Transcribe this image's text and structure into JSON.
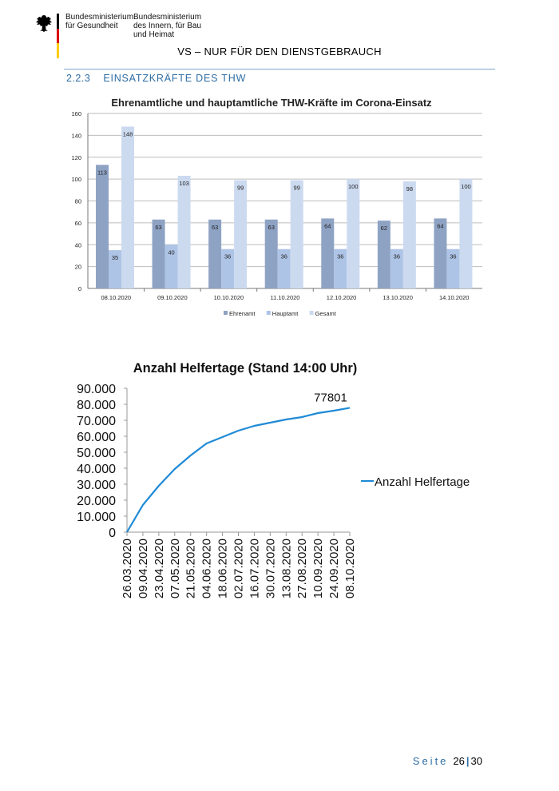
{
  "header": {
    "ministry_1": "Bundesministerium\nfür Gesundheit",
    "ministry_2": "Bundesministerium\ndes Innern, für Bau\nund Heimat",
    "classification": "VS – NUR FÜR DEN DIENSTGEBRAUCH",
    "flag_colors": [
      "#000000",
      "#dd0000",
      "#ffce00"
    ]
  },
  "section": {
    "number": "2.2.3",
    "title": "EINSATZKRÄFTE DES THW"
  },
  "footer": {
    "seite": "Seite",
    "page": "26",
    "total": "30"
  },
  "chart_data": [
    {
      "type": "bar",
      "title": "Ehrenamtliche und hauptamtliche THW-Kräfte im Corona-Einsatz",
      "categories": [
        "08.10.2020",
        "09.10.2020",
        "10.10.2020",
        "11.10.2020",
        "12.10.2020",
        "13.10.2020",
        "14.10.2020"
      ],
      "series": [
        {
          "name": "Ehrenamt",
          "values": [
            113,
            63,
            63,
            63,
            64,
            62,
            64
          ],
          "color": "#8ea3c4"
        },
        {
          "name": "Hauptamt",
          "values": [
            35,
            40,
            36,
            36,
            36,
            36,
            36
          ],
          "color": "#aec4e6"
        },
        {
          "name": "Gesamt",
          "values": [
            148,
            103,
            99,
            99,
            100,
            98,
            100
          ],
          "color": "#ccdaf0"
        }
      ],
      "ylim": [
        0,
        160
      ],
      "yticks": [
        "0",
        "20",
        "40",
        "60",
        "80",
        "100",
        "120",
        "140",
        "160"
      ],
      "grid": true,
      "legend": "bottom"
    },
    {
      "type": "line",
      "title": "Anzahl Helfertage (Stand 14:00 Uhr)",
      "x": [
        "26.03.2020",
        "09.04.2020",
        "23.04.2020",
        "07.05.2020",
        "21.05.2020",
        "04.06.2020",
        "18.06.2020",
        "02.07.2020",
        "16.07.2020",
        "30.07.2020",
        "13.08.2020",
        "27.08.2020",
        "10.09.2020",
        "24.09.2020",
        "08.10.2020"
      ],
      "series": [
        {
          "name": "Anzahl Helfertage",
          "values": [
            0,
            17000,
            29000,
            39500,
            48000,
            55500,
            59500,
            63500,
            66500,
            68500,
            70500,
            72000,
            74500,
            76000,
            77801
          ],
          "color": "#1f8ad6"
        }
      ],
      "annotation": "77801",
      "ylim": [
        0,
        90000
      ],
      "yticks": [
        "0",
        "10.000",
        "20.000",
        "30.000",
        "40.000",
        "50.000",
        "60.000",
        "70.000",
        "80.000",
        "90.000"
      ],
      "grid": false,
      "legend": "right"
    }
  ]
}
